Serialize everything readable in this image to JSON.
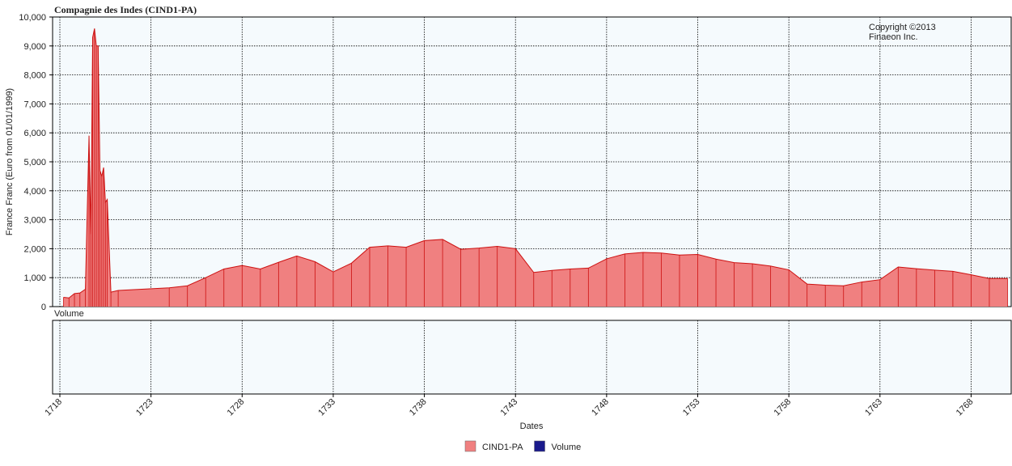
{
  "chart_data": {
    "type": "area",
    "title": "Compagnie des Indes (CIND1-PA)",
    "y_label": "France Franc (Euro from 01/01/1999)",
    "x_label": "Dates",
    "annotation": [
      "Copyright ©2013",
      "Finaeon Inc."
    ],
    "volume_panel_label": "Volume",
    "xlim": [
      1717.6,
      1770.2
    ],
    "xticks": [
      1718,
      1723,
      1728,
      1733,
      1738,
      1743,
      1748,
      1753,
      1758,
      1763,
      1768
    ],
    "ylim": [
      0,
      10000
    ],
    "yticks": [
      0,
      {
        "value": 1000,
        "label": "1,000"
      },
      {
        "value": 2000,
        "label": "2,000"
      },
      {
        "value": 3000,
        "label": "3,000"
      },
      {
        "value": 4000,
        "label": "4,000"
      },
      {
        "value": 5000,
        "label": "5,000"
      },
      {
        "value": 6000,
        "label": "6,000"
      },
      {
        "value": 7000,
        "label": "7,000"
      },
      {
        "value": 8000,
        "label": "8,000"
      },
      {
        "value": 9000,
        "label": "9,000"
      },
      {
        "value": 10000,
        "label": "10,000"
      }
    ],
    "grid": true,
    "legend": "bottom",
    "series": [
      {
        "name": "CIND1-PA",
        "color": "#f08080",
        "x": [
          1718.2,
          1718.5,
          1718.8,
          1719.1,
          1719.4,
          1719.6,
          1719.7,
          1719.8,
          1719.9,
          1720.0,
          1720.1,
          1720.2,
          1720.3,
          1720.4,
          1720.5,
          1720.6,
          1720.8,
          1721.2,
          1724,
          1725,
          1726,
          1727,
          1728,
          1729,
          1730,
          1731,
          1732,
          1733,
          1734,
          1735,
          1736,
          1737,
          1738,
          1739,
          1740,
          1741,
          1742,
          1743,
          1744,
          1745,
          1746,
          1747,
          1748,
          1749,
          1750,
          1751,
          1752,
          1753,
          1754,
          1755,
          1756,
          1757,
          1758,
          1759,
          1760,
          1761,
          1762,
          1763,
          1764,
          1765,
          1766,
          1767,
          1768,
          1769,
          1770
        ],
        "values": [
          320,
          300,
          450,
          470,
          600,
          5900,
          2500,
          9300,
          9600,
          9000,
          9000,
          4700,
          4500,
          4800,
          3600,
          3700,
          500,
          560,
          650,
          720,
          1000,
          1300,
          1420,
          1300,
          1530,
          1750,
          1550,
          1200,
          1500,
          2050,
          2100,
          2050,
          2280,
          2320,
          1980,
          2020,
          2080,
          2000,
          1180,
          1250,
          1300,
          1330,
          1650,
          1820,
          1870,
          1850,
          1780,
          1800,
          1640,
          1520,
          1480,
          1400,
          1270,
          780,
          740,
          720,
          850,
          930,
          1370,
          1310,
          1260,
          1220,
          1100,
          970,
          970
        ]
      },
      {
        "name": "Volume",
        "color": "#1a1a8c",
        "x": [],
        "values": []
      }
    ]
  }
}
